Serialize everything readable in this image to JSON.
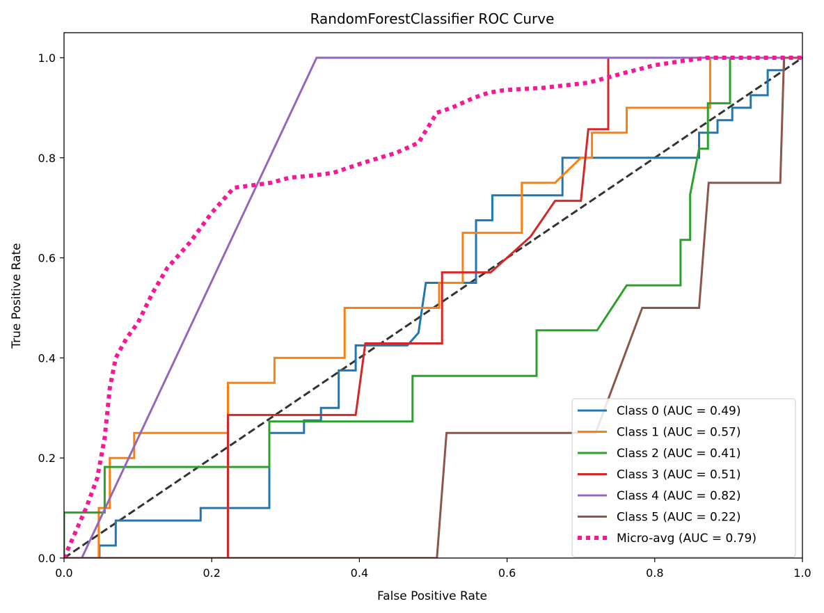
{
  "chart_data": {
    "type": "line",
    "title": "RandomForestClassifier ROC Curve",
    "xlabel": "False Positive Rate",
    "ylabel": "True Positive Rate",
    "xlim": [
      0.0,
      1.0
    ],
    "ylim": [
      0.0,
      1.05
    ],
    "xticks": [
      "0.0",
      "0.2",
      "0.4",
      "0.6",
      "0.8",
      "1.0"
    ],
    "yticks": [
      "0.0",
      "0.2",
      "0.4",
      "0.6",
      "0.8",
      "1.0"
    ],
    "grid": false,
    "legend_position": "lower-right",
    "diagonal": {
      "x": [
        0,
        1
      ],
      "y": [
        0,
        1
      ],
      "color": "#333333",
      "style": "dashed"
    },
    "series": [
      {
        "name": "Class 0 (AUC = 0.49)",
        "color": "#1f77b4",
        "style": "solid",
        "x": [
          0,
          0.048,
          0.048,
          0.07,
          0.07,
          0.185,
          0.185,
          0.278,
          0.278,
          0.325,
          0.325,
          0.348,
          0.348,
          0.372,
          0.372,
          0.395,
          0.395,
          0.41,
          0.41,
          0.465,
          0.48,
          0.48,
          0.49,
          0.49,
          0.525,
          0.525,
          0.535,
          0.535,
          0.558,
          0.558,
          0.58,
          0.58,
          0.675,
          0.675,
          0.86,
          0.86,
          0.885,
          0.885,
          0.905,
          0.905,
          0.93,
          0.93,
          0.953,
          0.953,
          0.975,
          0.975,
          1.0
        ],
        "y": [
          0,
          0,
          0.025,
          0.025,
          0.075,
          0.075,
          0.1,
          0.1,
          0.25,
          0.25,
          0.275,
          0.275,
          0.3,
          0.3,
          0.375,
          0.375,
          0.425,
          0.425,
          0.425,
          0.425,
          0.45,
          0.45,
          0.55,
          0.55,
          0.55,
          0.55,
          0.55,
          0.55,
          0.55,
          0.675,
          0.675,
          0.725,
          0.725,
          0.8,
          0.8,
          0.85,
          0.85,
          0.875,
          0.875,
          0.9,
          0.9,
          0.925,
          0.925,
          0.975,
          0.975,
          1.0,
          1.0
        ]
      },
      {
        "name": "Class 1 (AUC = 0.57)",
        "color": "#ff7f0e",
        "style": "solid",
        "x": [
          0,
          0.047,
          0.047,
          0.062,
          0.062,
          0.095,
          0.095,
          0.222,
          0.222,
          0.285,
          0.285,
          0.38,
          0.38,
          0.508,
          0.508,
          0.54,
          0.54,
          0.62,
          0.62,
          0.665,
          0.7,
          0.715,
          0.715,
          0.762,
          0.762,
          0.875,
          0.875,
          1.0
        ],
        "y": [
          0,
          0,
          0.1,
          0.1,
          0.2,
          0.2,
          0.25,
          0.25,
          0.35,
          0.35,
          0.4,
          0.4,
          0.5,
          0.5,
          0.55,
          0.55,
          0.65,
          0.65,
          0.75,
          0.75,
          0.8,
          0.8,
          0.85,
          0.85,
          0.9,
          0.9,
          1.0,
          1.0
        ]
      },
      {
        "name": "Class 2 (AUC = 0.41)",
        "color": "#2ca02c",
        "style": "solid",
        "x": [
          0,
          0.0,
          0.055,
          0.055,
          0.278,
          0.278,
          0.472,
          0.472,
          0.64,
          0.64,
          0.722,
          0.762,
          0.835,
          0.835,
          0.848,
          0.848,
          0.86,
          0.86,
          0.872,
          0.872,
          0.902,
          0.902,
          1.0
        ],
        "y": [
          0,
          0.091,
          0.091,
          0.182,
          0.182,
          0.273,
          0.273,
          0.364,
          0.364,
          0.455,
          0.455,
          0.545,
          0.545,
          0.636,
          0.636,
          0.727,
          0.818,
          0.818,
          0.818,
          0.909,
          0.909,
          1.0,
          1.0
        ]
      },
      {
        "name": "Class 3 (AUC = 0.51)",
        "color": "#d62728",
        "style": "solid",
        "x": [
          0,
          0.222,
          0.222,
          0.395,
          0.408,
          0.512,
          0.512,
          0.578,
          0.632,
          0.665,
          0.7,
          0.71,
          0.71,
          0.737,
          0.737,
          1.0
        ],
        "y": [
          0,
          0,
          0.286,
          0.286,
          0.429,
          0.429,
          0.571,
          0.571,
          0.643,
          0.714,
          0.714,
          0.857,
          0.857,
          0.857,
          1.0,
          1.0
        ]
      },
      {
        "name": "Class 4 (AUC = 0.82)",
        "color": "#9467bd",
        "style": "solid",
        "x": [
          0.024,
          0.342,
          1.0
        ],
        "y": [
          0,
          1.0,
          1.0
        ]
      },
      {
        "name": "Class 5 (AUC = 0.22)",
        "color": "#8c564b",
        "style": "solid",
        "x": [
          0,
          0.505,
          0.518,
          0.72,
          0.783,
          0.86,
          0.873,
          0.97,
          0.975,
          1.0
        ],
        "y": [
          0,
          0,
          0.25,
          0.25,
          0.5,
          0.5,
          0.75,
          0.75,
          1.0,
          1.0
        ]
      },
      {
        "name": "Micro-avg (AUC = 0.79)",
        "color": "#f81894",
        "style": "dotted",
        "x": [
          0.0,
          0.015,
          0.03,
          0.045,
          0.055,
          0.062,
          0.07,
          0.085,
          0.1,
          0.12,
          0.14,
          0.17,
          0.2,
          0.23,
          0.255,
          0.28,
          0.305,
          0.34,
          0.365,
          0.405,
          0.45,
          0.48,
          0.505,
          0.525,
          0.555,
          0.575,
          0.595,
          0.65,
          0.71,
          0.76,
          0.8,
          0.845,
          0.87,
          0.9,
          0.95,
          1.0
        ],
        "y": [
          0.0,
          0.05,
          0.1,
          0.16,
          0.24,
          0.34,
          0.4,
          0.44,
          0.47,
          0.53,
          0.58,
          0.63,
          0.69,
          0.74,
          0.745,
          0.75,
          0.76,
          0.765,
          0.77,
          0.79,
          0.81,
          0.83,
          0.89,
          0.9,
          0.92,
          0.93,
          0.935,
          0.94,
          0.95,
          0.97,
          0.985,
          0.995,
          1.0,
          1.0,
          1.0,
          1.0
        ]
      }
    ]
  }
}
